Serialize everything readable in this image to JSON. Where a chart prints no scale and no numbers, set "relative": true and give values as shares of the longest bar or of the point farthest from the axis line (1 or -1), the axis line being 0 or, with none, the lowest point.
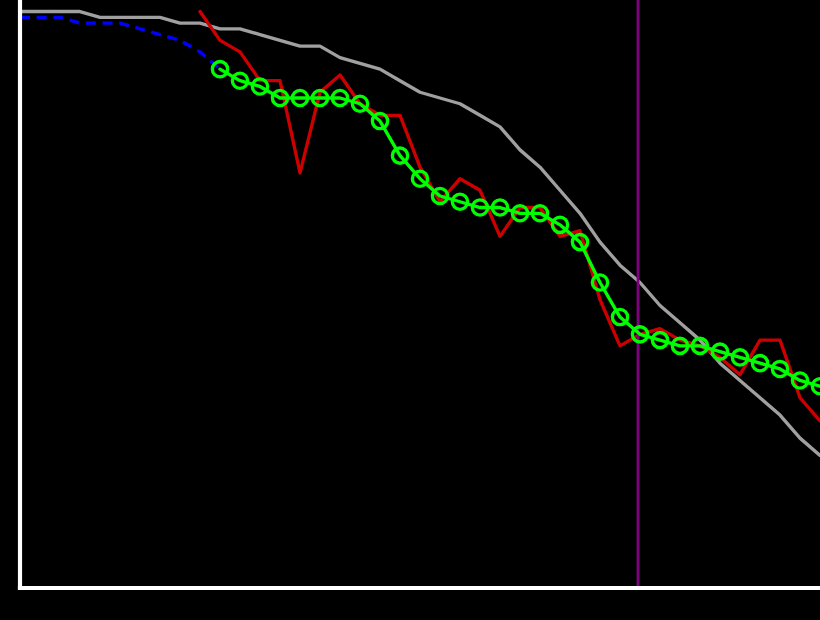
{
  "chart_data": {
    "type": "line",
    "relative": true,
    "categories": [
      null,
      null,
      null,
      null,
      null,
      null,
      null,
      null,
      null,
      null,
      null,
      null,
      null,
      null,
      null,
      null,
      null,
      null,
      null,
      null,
      null,
      null,
      null,
      null,
      null,
      null,
      null,
      null,
      null,
      null,
      null,
      null,
      null,
      null,
      null,
      null,
      null,
      null,
      null,
      null,
      null
    ],
    "series": [
      {
        "color": "#a0a0a0",
        "line_style": "solid",
        "values": [
          1.0,
          1.0,
          1.0,
          1.0,
          0.99,
          0.99,
          0.99,
          0.99,
          0.98,
          0.98,
          0.97,
          0.97,
          0.96,
          0.95,
          0.94,
          0.94,
          0.92,
          0.91,
          0.9,
          0.88,
          0.86,
          0.85,
          0.84,
          0.82,
          0.8,
          0.76,
          0.73,
          0.69,
          0.65,
          0.6,
          0.56,
          0.53,
          0.49,
          0.46,
          0.43,
          0.39,
          0.36,
          0.33,
          0.3,
          0.26,
          0.23
        ]
      },
      {
        "color": "#0000ff",
        "line_style": "dashed",
        "values": [
          0.99,
          0.99,
          0.99,
          0.98,
          0.98,
          0.98,
          0.97,
          0.96,
          0.95,
          0.93,
          0.9,
          null,
          null,
          null,
          null,
          null,
          null,
          null,
          null,
          null,
          null,
          null,
          null,
          null,
          null,
          null,
          null,
          null,
          null,
          null,
          null,
          null,
          null,
          null,
          null,
          null,
          null,
          null,
          null,
          null,
          null
        ]
      },
      {
        "color": "#cc0000",
        "line_style": "solid",
        "values": [
          null,
          null,
          null,
          null,
          null,
          null,
          null,
          null,
          null,
          1.0,
          0.95,
          0.93,
          0.88,
          0.88,
          0.72,
          0.86,
          0.89,
          0.84,
          0.82,
          0.82,
          0.73,
          0.67,
          0.71,
          0.69,
          0.61,
          0.66,
          0.66,
          0.61,
          0.62,
          0.5,
          0.42,
          0.44,
          0.45,
          0.43,
          0.42,
          0.4,
          0.37,
          0.43,
          0.43,
          0.33,
          0.29
        ]
      },
      {
        "color": "#00ff00",
        "marker": "circle",
        "line_style": "solid",
        "values": [
          null,
          null,
          null,
          null,
          null,
          null,
          null,
          null,
          null,
          null,
          0.9,
          0.88,
          0.87,
          0.85,
          0.85,
          0.85,
          0.85,
          0.84,
          0.81,
          0.75,
          0.71,
          0.68,
          0.67,
          0.66,
          0.66,
          0.65,
          0.65,
          0.63,
          0.6,
          0.53,
          0.47,
          0.44,
          0.43,
          0.42,
          0.42,
          0.41,
          0.4,
          0.39,
          0.38,
          0.36,
          0.35
        ]
      }
    ]
  }
}
